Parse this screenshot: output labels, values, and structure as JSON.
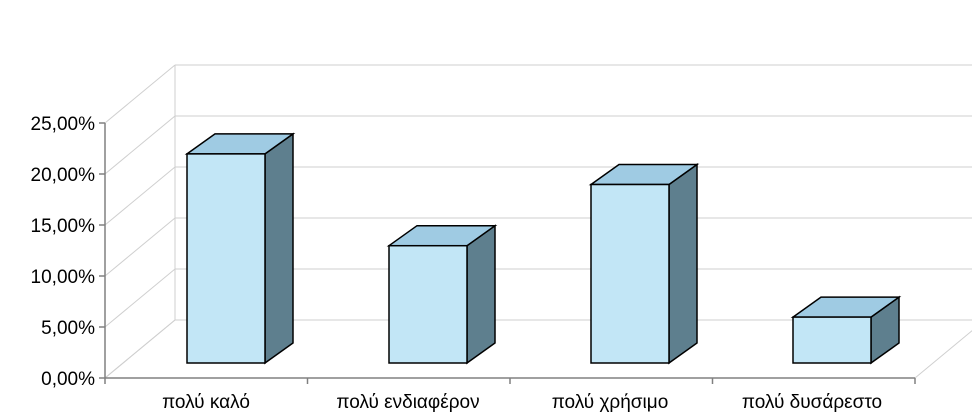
{
  "chart_data": {
    "type": "bar",
    "style": "3d-column",
    "categories": [
      "πολύ καλό",
      "πολύ ενδιαφέρον",
      "πολύ χρήσιμο",
      "πολύ δυσάρεστο"
    ],
    "values": [
      20.5,
      11.5,
      17.5,
      4.5
    ],
    "value_unit": "%",
    "ylim": [
      0,
      25
    ],
    "yticks": [
      "0,00%",
      "5,00%",
      "10,00%",
      "15,00%",
      "20,00%",
      "25,00%"
    ],
    "title": "",
    "xlabel": "",
    "ylabel": "",
    "grid": true,
    "legend": "none",
    "colors": {
      "bar_front": "#c2e6f6",
      "bar_top": "#9fcbe3",
      "bar_side": "#5e7f8e",
      "bar_edge": "#000000",
      "grid": "#cfcfcf",
      "axis": "#808080"
    }
  }
}
